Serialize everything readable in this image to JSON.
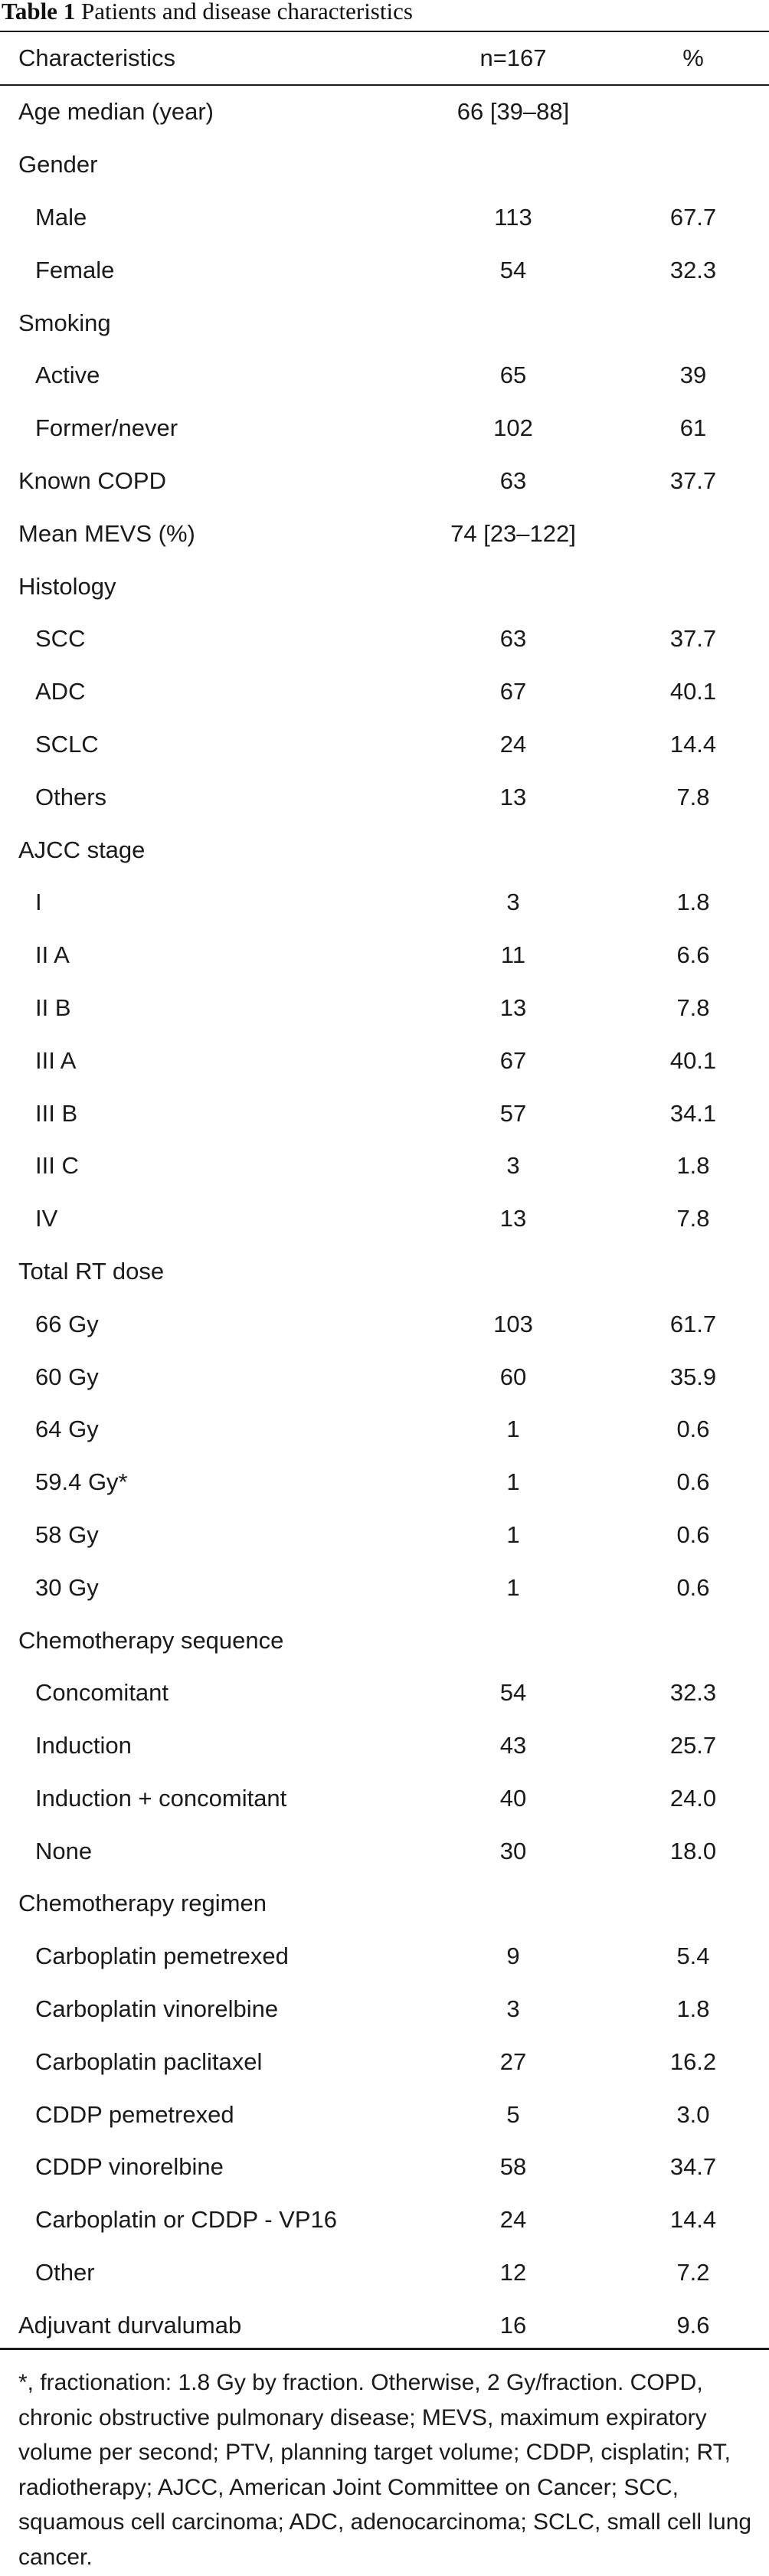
{
  "caption": {
    "label": "Table 1",
    "title": "Patients and disease characteristics"
  },
  "header": {
    "characteristics": "Characteristics",
    "n": "n=167",
    "percent": "%"
  },
  "rows": [
    {
      "label": "Age median (year)",
      "n": "66 [39–88]",
      "p": "",
      "sub": false
    },
    {
      "label": "Gender",
      "n": "",
      "p": "",
      "sub": false
    },
    {
      "label": "Male",
      "n": "113",
      "p": "67.7",
      "sub": true
    },
    {
      "label": "Female",
      "n": "54",
      "p": "32.3",
      "sub": true
    },
    {
      "label": "Smoking",
      "n": "",
      "p": "",
      "sub": false
    },
    {
      "label": "Active",
      "n": "65",
      "p": "39",
      "sub": true
    },
    {
      "label": "Former/never",
      "n": "102",
      "p": "61",
      "sub": true
    },
    {
      "label": "Known COPD",
      "n": "63",
      "p": "37.7",
      "sub": false
    },
    {
      "label": "Mean MEVS (%)",
      "n": "74 [23–122]",
      "p": "",
      "sub": false
    },
    {
      "label": "Histology",
      "n": "",
      "p": "",
      "sub": false
    },
    {
      "label": "SCC",
      "n": "63",
      "p": "37.7",
      "sub": true
    },
    {
      "label": "ADC",
      "n": "67",
      "p": "40.1",
      "sub": true
    },
    {
      "label": "SCLC",
      "n": "24",
      "p": "14.4",
      "sub": true
    },
    {
      "label": "Others",
      "n": "13",
      "p": "7.8",
      "sub": true
    },
    {
      "label": "AJCC stage",
      "n": "",
      "p": "",
      "sub": false
    },
    {
      "label": "I",
      "n": "3",
      "p": "1.8",
      "sub": true
    },
    {
      "label": "II A",
      "n": "11",
      "p": "6.6",
      "sub": true
    },
    {
      "label": "II B",
      "n": "13",
      "p": "7.8",
      "sub": true
    },
    {
      "label": "III A",
      "n": "67",
      "p": "40.1",
      "sub": true
    },
    {
      "label": "III B",
      "n": "57",
      "p": "34.1",
      "sub": true
    },
    {
      "label": "III C",
      "n": "3",
      "p": "1.8",
      "sub": true
    },
    {
      "label": "IV",
      "n": "13",
      "p": "7.8",
      "sub": true
    },
    {
      "label": "Total RT dose",
      "n": "",
      "p": "",
      "sub": false
    },
    {
      "label": "66 Gy",
      "n": "103",
      "p": "61.7",
      "sub": true
    },
    {
      "label": "60 Gy",
      "n": "60",
      "p": "35.9",
      "sub": true
    },
    {
      "label": "64 Gy",
      "n": "1",
      "p": "0.6",
      "sub": true
    },
    {
      "label": "59.4 Gy*",
      "n": "1",
      "p": "0.6",
      "sub": true
    },
    {
      "label": "58 Gy",
      "n": "1",
      "p": "0.6",
      "sub": true
    },
    {
      "label": "30 Gy",
      "n": "1",
      "p": "0.6",
      "sub": true
    },
    {
      "label": "Chemotherapy sequence",
      "n": "",
      "p": "",
      "sub": false
    },
    {
      "label": "Concomitant",
      "n": "54",
      "p": "32.3",
      "sub": true
    },
    {
      "label": "Induction",
      "n": "43",
      "p": "25.7",
      "sub": true
    },
    {
      "label": "Induction + concomitant",
      "n": "40",
      "p": "24.0",
      "sub": true
    },
    {
      "label": "None",
      "n": "30",
      "p": "18.0",
      "sub": true
    },
    {
      "label": "Chemotherapy regimen",
      "n": "",
      "p": "",
      "sub": false
    },
    {
      "label": "Carboplatin pemetrexed",
      "n": "9",
      "p": "5.4",
      "sub": true
    },
    {
      "label": "Carboplatin vinorelbine",
      "n": "3",
      "p": "1.8",
      "sub": true
    },
    {
      "label": "Carboplatin paclitaxel",
      "n": "27",
      "p": "16.2",
      "sub": true
    },
    {
      "label": "CDDP pemetrexed",
      "n": "5",
      "p": "3.0",
      "sub": true
    },
    {
      "label": "CDDP vinorelbine",
      "n": "58",
      "p": "34.7",
      "sub": true
    },
    {
      "label": "Carboplatin or CDDP - VP16",
      "n": "24",
      "p": "14.4",
      "sub": true
    },
    {
      "label": "Other",
      "n": "12",
      "p": "7.2",
      "sub": true
    },
    {
      "label": "Adjuvant durvalumab",
      "n": "16",
      "p": "9.6",
      "sub": false
    }
  ],
  "footnote": "*, fractionation: 1.8 Gy by fraction. Otherwise, 2 Gy/fraction. COPD, chronic obstructive pulmonary disease; MEVS, maximum expiratory volume per second; PTV, planning target volume; CDDP, cisplatin; RT, radiotherapy; AJCC, American Joint Committee on Cancer; SCC, squamous cell carcinoma; ADC, adenocarcinoma; SCLC, small cell lung cancer."
}
